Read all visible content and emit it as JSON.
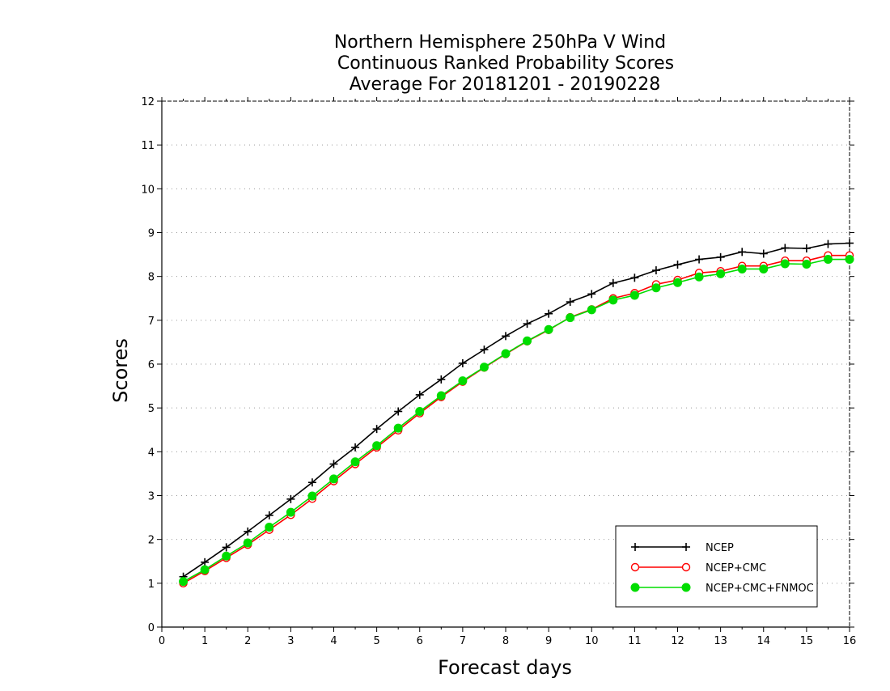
{
  "chart_data": {
    "type": "line",
    "title_lines": [
      "Northern Hemisphere 250hPa V Wind",
      "Continuous Ranked Probability Scores",
      "Average For 20181201 - 20190228"
    ],
    "xlabel": "Forecast days",
    "ylabel": "Scores",
    "xlim": [
      0,
      16
    ],
    "ylim": [
      0,
      12
    ],
    "xticks": [
      0,
      1,
      2,
      3,
      4,
      5,
      6,
      7,
      8,
      9,
      10,
      11,
      12,
      13,
      14,
      15,
      16
    ],
    "yticks": [
      0,
      1,
      2,
      3,
      4,
      5,
      6,
      7,
      8,
      9,
      10,
      11,
      12
    ],
    "grid": "horizontal dotted",
    "legend_position": "bottom-right",
    "x": [
      0.5,
      1,
      1.5,
      2,
      2.5,
      3,
      3.5,
      4,
      4.5,
      5,
      5.5,
      6,
      6.5,
      7,
      7.5,
      8,
      8.5,
      9,
      9.5,
      10,
      10.5,
      11,
      11.5,
      12,
      12.5,
      13,
      13.5,
      14,
      14.5,
      15,
      15.5,
      16
    ],
    "series": [
      {
        "name": "NCEP",
        "color": "#000000",
        "marker": "plus",
        "values": [
          1.15,
          1.48,
          1.82,
          2.18,
          2.55,
          2.92,
          3.3,
          3.72,
          4.1,
          4.52,
          4.92,
          5.3,
          5.65,
          6.02,
          6.33,
          6.64,
          6.92,
          7.15,
          7.42,
          7.6,
          7.85,
          7.97,
          8.14,
          8.27,
          8.39,
          8.44,
          8.56,
          8.52,
          8.65,
          8.64,
          8.74,
          8.76
        ]
      },
      {
        "name": "NCEP+CMC",
        "color": "#ff0000",
        "marker": "open-circle",
        "values": [
          1.0,
          1.28,
          1.58,
          1.88,
          2.22,
          2.56,
          2.93,
          3.33,
          3.72,
          4.1,
          4.49,
          4.88,
          5.25,
          5.6,
          5.92,
          6.23,
          6.52,
          6.78,
          7.07,
          7.25,
          7.5,
          7.62,
          7.82,
          7.92,
          8.08,
          8.12,
          8.24,
          8.24,
          8.36,
          8.36,
          8.48,
          8.48
        ]
      },
      {
        "name": "NCEP+CMC+FNMOC",
        "color": "#00dd00",
        "marker": "filled-circle",
        "values": [
          1.04,
          1.31,
          1.62,
          1.92,
          2.28,
          2.62,
          2.99,
          3.38,
          3.77,
          4.14,
          4.54,
          4.92,
          5.28,
          5.62,
          5.93,
          6.24,
          6.53,
          6.79,
          7.06,
          7.24,
          7.46,
          7.57,
          7.74,
          7.86,
          7.99,
          8.06,
          8.17,
          8.17,
          8.29,
          8.28,
          8.39,
          8.39
        ]
      }
    ]
  }
}
